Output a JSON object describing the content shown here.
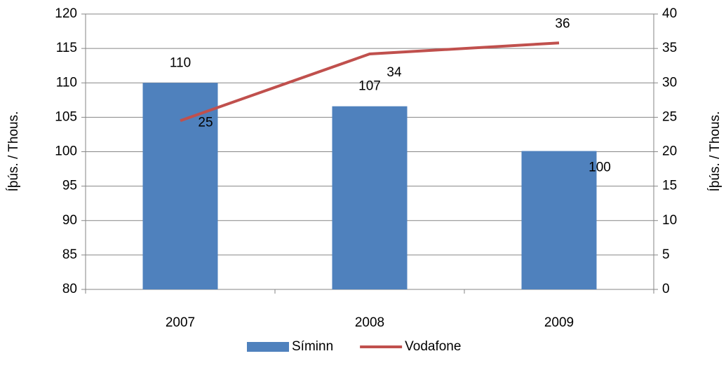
{
  "chart_data": {
    "type": "bar",
    "categories": [
      "2007",
      "2008",
      "2009"
    ],
    "series": [
      {
        "name": "Síminn",
        "type": "bar",
        "color": "#4f81bd",
        "values": [
          110,
          106.6,
          100.1
        ],
        "value_labels": [
          "110",
          "107",
          "100"
        ]
      },
      {
        "name": "Vodafone",
        "type": "line",
        "axis": "y2",
        "color": "#c0504d",
        "values": [
          24.5,
          34.2,
          35.8
        ],
        "value_labels": [
          "25",
          "34",
          "36"
        ]
      }
    ],
    "y_label": "Íþús. / Thous.",
    "y2_label": "Íþús. / Thous.",
    "ylim": [
      80,
      120
    ],
    "yticks": [
      80,
      85,
      90,
      95,
      100,
      105,
      110,
      115,
      120
    ],
    "y2lim": [
      0,
      40
    ],
    "y2ticks": [
      0,
      5,
      10,
      15,
      20,
      25,
      30,
      35,
      40
    ],
    "grid": true,
    "legend": "bottom"
  }
}
